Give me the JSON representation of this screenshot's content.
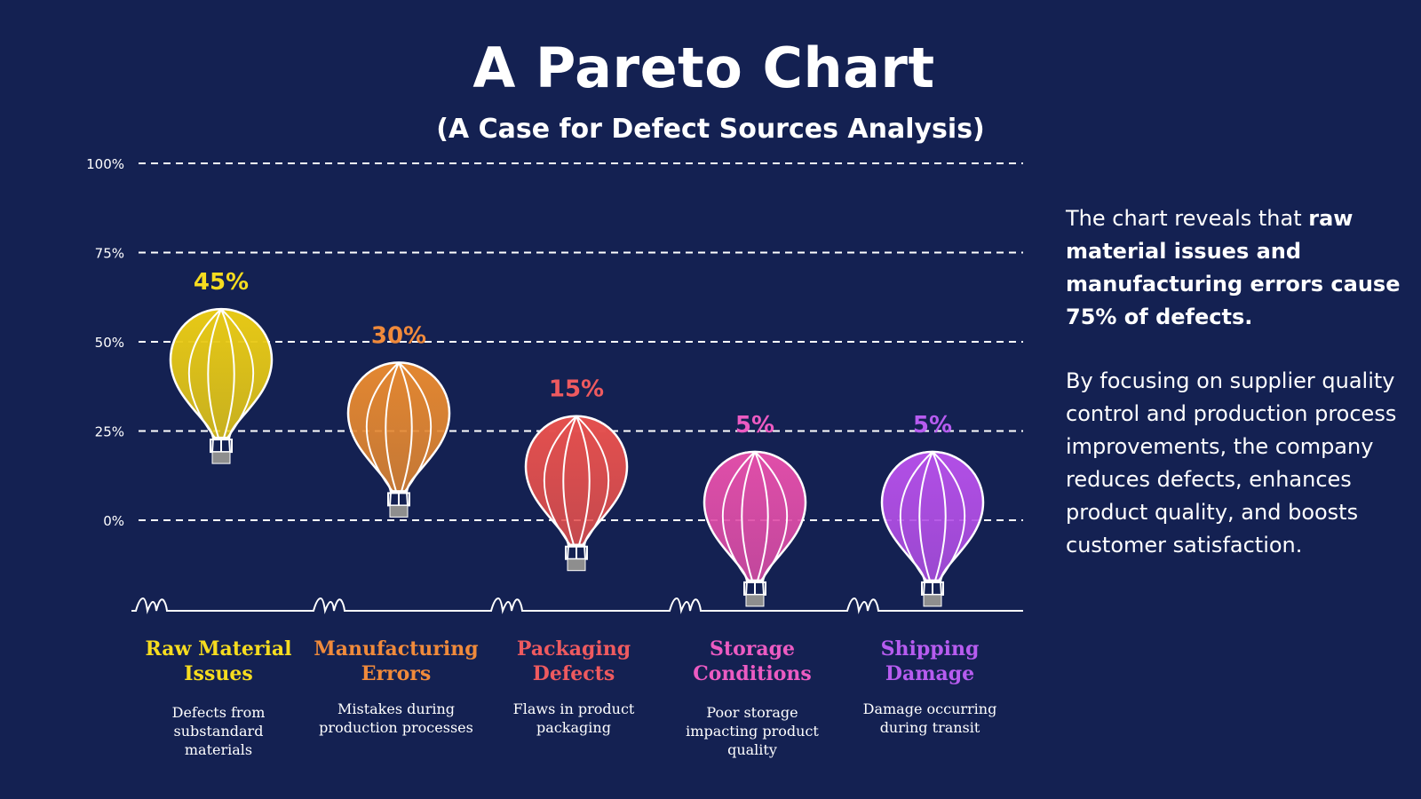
{
  "chart_data": {
    "type": "bar",
    "title": "A Pareto Chart",
    "subtitle": "(A Case for Defect Sources Analysis)",
    "y_ticks": [
      "100%",
      "75%",
      "50%",
      "25%",
      "0%"
    ],
    "ylim": [
      0,
      100
    ],
    "grid": true,
    "categories": [
      "Raw Material Issues",
      "Manufacturing Errors",
      "Packaging Defects",
      "Storage Conditions",
      "Shipping Damage"
    ],
    "values": [
      45,
      30,
      15,
      5,
      5
    ],
    "value_labels": [
      "45%",
      "30%",
      "15%",
      "5%",
      "5%"
    ],
    "name_lines": [
      [
        "Raw Material",
        "Issues"
      ],
      [
        "Manufacturing",
        "Errors"
      ],
      [
        "Packaging",
        "Defects"
      ],
      [
        "Storage",
        "Conditions"
      ],
      [
        "Shipping",
        "Damage"
      ]
    ],
    "descriptions": [
      [
        "Defects from",
        "substandard",
        "materials"
      ],
      [
        "Mistakes during",
        "production processes"
      ],
      [
        "Flaws in product",
        "packaging"
      ],
      [
        "Poor storage",
        "impacting product",
        "quality"
      ],
      [
        "Damage occurring",
        "during transit"
      ]
    ],
    "colors": [
      "#e7c916",
      "#e38731",
      "#e4504e",
      "#e04ea9",
      "#b24fe6"
    ],
    "label_colors": [
      "#f6dc1f",
      "#f08a3b",
      "#ee5a5f",
      "#ec5bc2",
      "#b75cf0"
    ]
  },
  "side_text": {
    "p1_plain": "The chart reveals that ",
    "p1_bold": "raw material issues and manufacturing errors cause 75% of defects.",
    "p2": "By focusing on supplier quality control and production process improvements, the company reduces defects, enhances product quality, and boosts customer satisfaction."
  }
}
